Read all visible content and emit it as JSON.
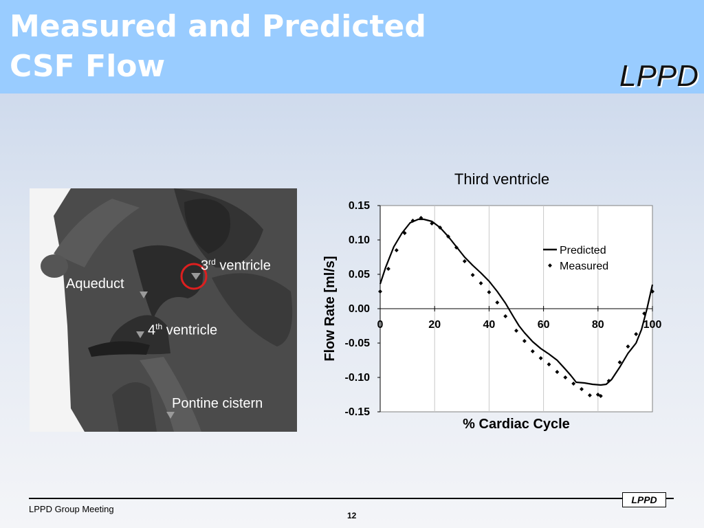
{
  "header": {
    "title_line1": "Measured and Predicted",
    "title_line2": "CSF Flow",
    "logo": "LPPD"
  },
  "anatomy": {
    "labels": {
      "third_num": "3",
      "third_sup": "rd",
      "third_word": " ventricle",
      "aqueduct": "Aqueduct",
      "fourth_num": "4",
      "fourth_sup": "th",
      "fourth_word": " ventricle",
      "pontine": "Pontine cistern"
    },
    "highlight_color": "#dd1f1f"
  },
  "chart_data": {
    "type": "line",
    "title": "Third ventricle",
    "xlabel": "% Cardiac Cycle",
    "ylabel": "Flow Rate [ml/s]",
    "xlim": [
      0,
      100
    ],
    "ylim": [
      -0.15,
      0.15
    ],
    "xticks": [
      "0",
      "20",
      "40",
      "60",
      "80",
      "100"
    ],
    "yticks": [
      "0.15",
      "0.10",
      "0.05",
      "0.00",
      "-0.05",
      "-0.10",
      "-0.15"
    ],
    "grid": "vertical",
    "legend": "top-right",
    "series": [
      {
        "name": "Predicted",
        "style": "line",
        "x": [
          0,
          2,
          5,
          8,
          11,
          14,
          16,
          19,
          22,
          25,
          28,
          31,
          34,
          37,
          40,
          43,
          46,
          49,
          51,
          53,
          56,
          59,
          62,
          65,
          68,
          70,
          72,
          75,
          78,
          81,
          83,
          85,
          88,
          91,
          94,
          96,
          98,
          100
        ],
        "y": [
          0.036,
          0.06,
          0.09,
          0.11,
          0.125,
          0.13,
          0.13,
          0.127,
          0.118,
          0.105,
          0.09,
          0.075,
          0.063,
          0.052,
          0.04,
          0.025,
          0.008,
          -0.012,
          -0.025,
          -0.035,
          -0.048,
          -0.058,
          -0.066,
          -0.075,
          -0.088,
          -0.097,
          -0.107,
          -0.108,
          -0.11,
          -0.111,
          -0.11,
          -0.103,
          -0.085,
          -0.065,
          -0.05,
          -0.03,
          0.0,
          0.035
        ]
      },
      {
        "name": "Measured",
        "style": "markers",
        "x": [
          0,
          3,
          6,
          9,
          12,
          15,
          19,
          22,
          25,
          28,
          31,
          34,
          37,
          40,
          43,
          46,
          50,
          53,
          56,
          59,
          62,
          65,
          68,
          71,
          74,
          77,
          80,
          81,
          84,
          88,
          91,
          94,
          97,
          100
        ],
        "y": [
          0.025,
          0.058,
          0.085,
          0.11,
          0.128,
          0.132,
          0.124,
          0.118,
          0.105,
          0.089,
          0.069,
          0.049,
          0.037,
          0.024,
          0.009,
          -0.011,
          -0.032,
          -0.047,
          -0.062,
          -0.072,
          -0.081,
          -0.092,
          -0.1,
          -0.109,
          -0.117,
          -0.126,
          -0.125,
          -0.127,
          -0.105,
          -0.078,
          -0.055,
          -0.037,
          -0.007,
          0.025
        ]
      }
    ]
  },
  "footer": {
    "left": "LPPD Group Meeting",
    "page": "12",
    "logo": "LPPD"
  }
}
